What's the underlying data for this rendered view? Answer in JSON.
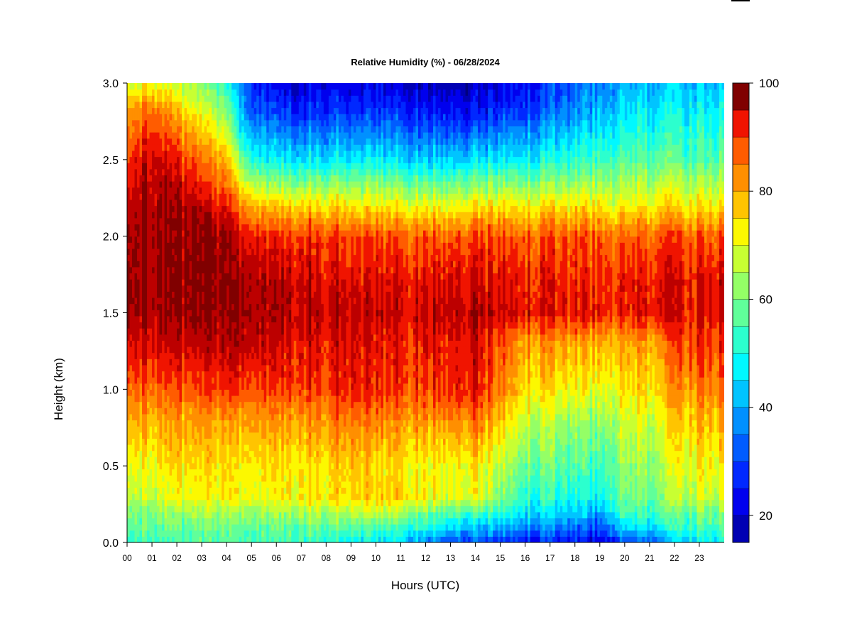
{
  "chart_data": {
    "type": "heatmap",
    "title": "Relative Humidity (%) - 06/28/2024",
    "xlabel": "Hours (UTC)",
    "ylabel": "Height (km)",
    "x_tick_labels": [
      "00",
      "01",
      "02",
      "03",
      "04",
      "05",
      "06",
      "07",
      "08",
      "09",
      "10",
      "11",
      "12",
      "13",
      "14",
      "15",
      "16",
      "17",
      "18",
      "19",
      "20",
      "21",
      "22",
      "23"
    ],
    "y_ticks": [
      0.0,
      0.5,
      1.0,
      1.5,
      2.0,
      2.5,
      3.0
    ],
    "y_tick_labels": [
      "0.0",
      "0.5",
      "1.0",
      "1.5",
      "2.0",
      "2.5",
      "3.0"
    ],
    "xlim": [
      0,
      24
    ],
    "ylim": [
      0,
      3
    ],
    "colorbar": {
      "range": [
        15,
        100
      ],
      "ticks": [
        20,
        40,
        60,
        80,
        100
      ],
      "tick_labels": [
        "20",
        "40",
        "60",
        "80",
        "100"
      ],
      "levels": [
        15,
        20,
        25,
        30,
        35,
        40,
        45,
        50,
        55,
        60,
        65,
        70,
        75,
        80,
        85,
        90,
        95,
        100
      ],
      "colors": [
        "#00007F",
        "#0000B3",
        "#0000EE",
        "#0028FF",
        "#005CFF",
        "#0090FF",
        "#00C4FF",
        "#00F8FF",
        "#2CFFCE",
        "#60FF9A",
        "#94FF66",
        "#C8FF32",
        "#FCF800",
        "#FFC400",
        "#FF8F00",
        "#FF5C00",
        "#F01400",
        "#BC0000",
        "#800000"
      ]
    },
    "heights_km": [
      0.0,
      0.1,
      0.2,
      0.3,
      0.5,
      0.8,
      1.0,
      1.3,
      1.5,
      1.7,
      2.0,
      2.2,
      2.5,
      2.8,
      3.0
    ],
    "times_hr": [
      0,
      1,
      2,
      3,
      4,
      4.5,
      5,
      6,
      7,
      8,
      9,
      10,
      11,
      12,
      13,
      14,
      15,
      16,
      17,
      18,
      19,
      19.5,
      20,
      21,
      21.6,
      22,
      23,
      24
    ],
    "rh_percent": [
      [
        52,
        56,
        60,
        66,
        70,
        78,
        86,
        94,
        100,
        100,
        100,
        96,
        90,
        80,
        68
      ],
      [
        54,
        58,
        62,
        68,
        72,
        80,
        88,
        96,
        100,
        100,
        100,
        100,
        98,
        88,
        72
      ],
      [
        55,
        58,
        62,
        70,
        74,
        80,
        88,
        96,
        100,
        100,
        100,
        100,
        92,
        78,
        66
      ],
      [
        55,
        58,
        63,
        70,
        74,
        80,
        88,
        96,
        100,
        100,
        100,
        96,
        84,
        70,
        60
      ],
      [
        55,
        58,
        64,
        72,
        74,
        80,
        90,
        98,
        100,
        100,
        100,
        92,
        78,
        62,
        52
      ],
      [
        55,
        58,
        64,
        72,
        74,
        80,
        90,
        98,
        100,
        100,
        96,
        84,
        62,
        44,
        38
      ],
      [
        55,
        58,
        64,
        72,
        74,
        82,
        90,
        97,
        100,
        100,
        94,
        80,
        52,
        34,
        28
      ],
      [
        54,
        58,
        64,
        72,
        74,
        82,
        90,
        96,
        99,
        98,
        92,
        76,
        48,
        30,
        22
      ],
      [
        54,
        58,
        66,
        74,
        74,
        82,
        90,
        95,
        98,
        97,
        92,
        76,
        46,
        28,
        20
      ],
      [
        52,
        58,
        66,
        75,
        76,
        84,
        91,
        95,
        98,
        96,
        92,
        76,
        48,
        30,
        22
      ],
      [
        50,
        58,
        68,
        76,
        78,
        86,
        94,
        96,
        98,
        96,
        90,
        76,
        48,
        30,
        22
      ],
      [
        48,
        56,
        68,
        77,
        76,
        84,
        92,
        94,
        97,
        95,
        90,
        74,
        48,
        30,
        22
      ],
      [
        44,
        54,
        66,
        76,
        74,
        82,
        90,
        92,
        96,
        94,
        88,
        72,
        46,
        28,
        20
      ],
      [
        36,
        52,
        60,
        72,
        72,
        82,
        90,
        93,
        97,
        94,
        88,
        72,
        44,
        26,
        18
      ],
      [
        30,
        46,
        58,
        70,
        72,
        84,
        92,
        94,
        98,
        96,
        88,
        72,
        44,
        26,
        18
      ],
      [
        30,
        42,
        56,
        72,
        74,
        86,
        94,
        95,
        99,
        96,
        90,
        74,
        46,
        26,
        18
      ],
      [
        28,
        40,
        52,
        60,
        66,
        76,
        84,
        88,
        96,
        94,
        88,
        74,
        46,
        28,
        20
      ],
      [
        26,
        38,
        48,
        54,
        60,
        68,
        76,
        82,
        94,
        93,
        88,
        74,
        48,
        30,
        24
      ],
      [
        26,
        36,
        46,
        52,
        58,
        66,
        74,
        82,
        94,
        93,
        88,
        74,
        50,
        34,
        28
      ],
      [
        24,
        34,
        44,
        50,
        56,
        64,
        72,
        80,
        93,
        92,
        88,
        74,
        52,
        38,
        32
      ],
      [
        22,
        30,
        40,
        48,
        54,
        62,
        70,
        80,
        93,
        92,
        88,
        74,
        54,
        42,
        36
      ],
      [
        26,
        40,
        50,
        56,
        58,
        66,
        72,
        80,
        92,
        92,
        86,
        72,
        56,
        44,
        38
      ],
      [
        30,
        44,
        54,
        58,
        62,
        68,
        74,
        80,
        92,
        92,
        86,
        72,
        56,
        46,
        40
      ],
      [
        32,
        46,
        54,
        58,
        62,
        68,
        74,
        80,
        93,
        92,
        86,
        72,
        56,
        46,
        40
      ],
      [
        34,
        46,
        56,
        60,
        64,
        70,
        76,
        82,
        94,
        94,
        88,
        74,
        56,
        46,
        40
      ],
      [
        42,
        52,
        58,
        66,
        70,
        76,
        82,
        88,
        94,
        94,
        88,
        74,
        56,
        48,
        42
      ],
      [
        46,
        54,
        60,
        68,
        72,
        78,
        84,
        90,
        94,
        94,
        88,
        74,
        56,
        48,
        42
      ],
      [
        48,
        54,
        60,
        68,
        72,
        78,
        84,
        90,
        94,
        94,
        88,
        74,
        56,
        48,
        42
      ]
    ]
  }
}
